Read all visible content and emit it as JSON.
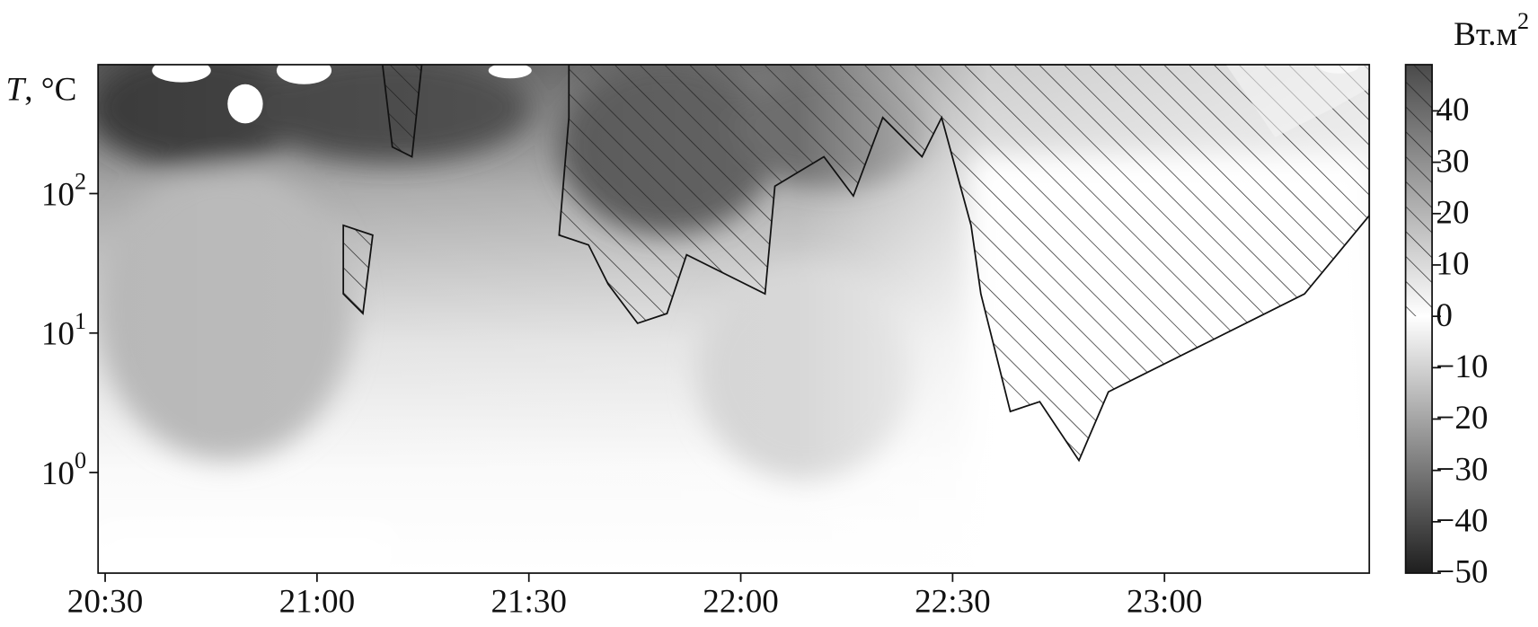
{
  "chart_data": {
    "type": "contour",
    "ylabel": "T, °C",
    "xlim": [
      "20:29",
      "23:29"
    ],
    "xticks": [
      "20:30",
      "21:00",
      "21:30",
      "22:00",
      "22:30",
      "23:00"
    ],
    "yscale": "log",
    "ylim": [
      0.19,
      840
    ],
    "yticks": [
      {
        "value": 1,
        "label": "10^0"
      },
      {
        "value": 10,
        "label": "10^1"
      },
      {
        "value": 100,
        "label": "10^2"
      }
    ],
    "colorbar": {
      "label": "Вт.м^2",
      "clim": [
        -50,
        49
      ],
      "colors": [
        "#1e1e1e",
        "#ffffff",
        "#4a4a4a"
      ],
      "ticks": [
        40,
        30,
        20,
        10,
        0,
        {
          "value": -10,
          "label": "−10"
        },
        {
          "value": -20,
          "label": "−20"
        },
        {
          "value": -30,
          "label": "−30"
        },
        {
          "value": -40,
          "label": "−40"
        },
        {
          "value": -50,
          "label": "−50"
        }
      ]
    }
  }
}
